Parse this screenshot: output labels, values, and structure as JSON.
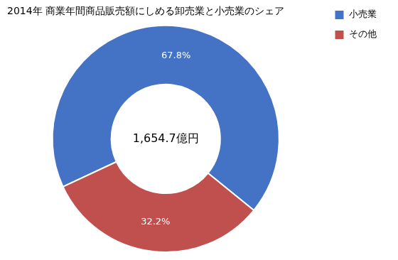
{
  "chart_data": {
    "type": "doughnut",
    "title": "2014年 商業年間商品販売額にしめる卸売業と小売業のシェア",
    "categories": [
      "小売業",
      "その他"
    ],
    "values": [
      67.8,
      32.2
    ],
    "value_labels": [
      "67.8%",
      "32.2%"
    ],
    "colors": [
      "#4472C4",
      "#C0504D"
    ],
    "data_labels": true,
    "annotations": [
      "1,654.7億円"
    ],
    "legend": "right"
  }
}
